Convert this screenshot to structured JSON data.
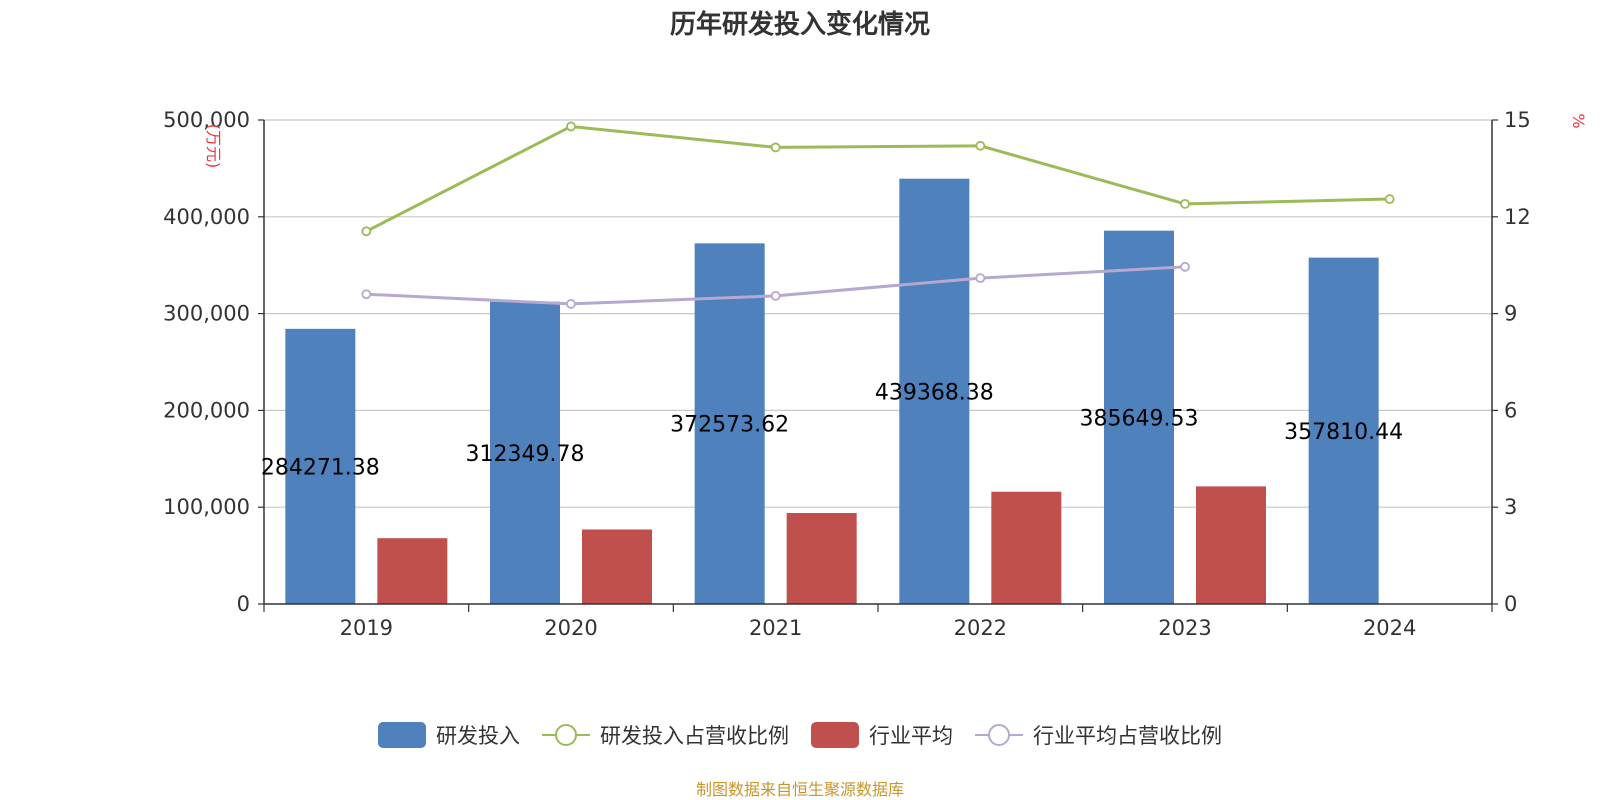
{
  "chart_data": {
    "type": "bar",
    "title": "历年研发投入变化情况",
    "categories": [
      "2019",
      "2020",
      "2021",
      "2022",
      "2023",
      "2024"
    ],
    "left_axis": {
      "unit": "(万元)",
      "min": 0,
      "max": 500000,
      "step": 100000,
      "tick_labels": [
        "0",
        "100,000",
        "200,000",
        "300,000",
        "400,000",
        "500,000"
      ]
    },
    "right_axis": {
      "unit": "%",
      "min": 0,
      "max": 15,
      "step": 3,
      "tick_labels": [
        "0",
        "3",
        "6",
        "9",
        "12",
        "15"
      ]
    },
    "series": [
      {
        "name": "研发投入",
        "type": "bar",
        "axis": "left",
        "color": "#4f81bd",
        "values": [
          284271.38,
          312349.78,
          372573.62,
          439368.38,
          385649.53,
          357810.44
        ],
        "labels": [
          "284271.38",
          "312349.78",
          "372573.62",
          "439368.38",
          "385649.53",
          "357810.44"
        ]
      },
      {
        "name": "研发投入占营收比例",
        "type": "line",
        "axis": "right",
        "color": "#9bbb59",
        "values": [
          11.55,
          14.8,
          14.15,
          14.2,
          12.4,
          12.55
        ]
      },
      {
        "name": "行业平均",
        "type": "bar",
        "axis": "left",
        "color": "#c0504d",
        "values": [
          68000,
          77000,
          94000,
          116000,
          121500,
          null
        ]
      },
      {
        "name": "行业平均占营收比例",
        "type": "line",
        "axis": "right",
        "color": "#b7a8cf",
        "values": [
          9.6,
          9.3,
          9.55,
          10.1,
          10.45,
          null
        ]
      }
    ],
    "legend_position": "bottom-center",
    "grid": true
  },
  "footer": {
    "source": "制图数据来自恒生聚源数据库"
  }
}
